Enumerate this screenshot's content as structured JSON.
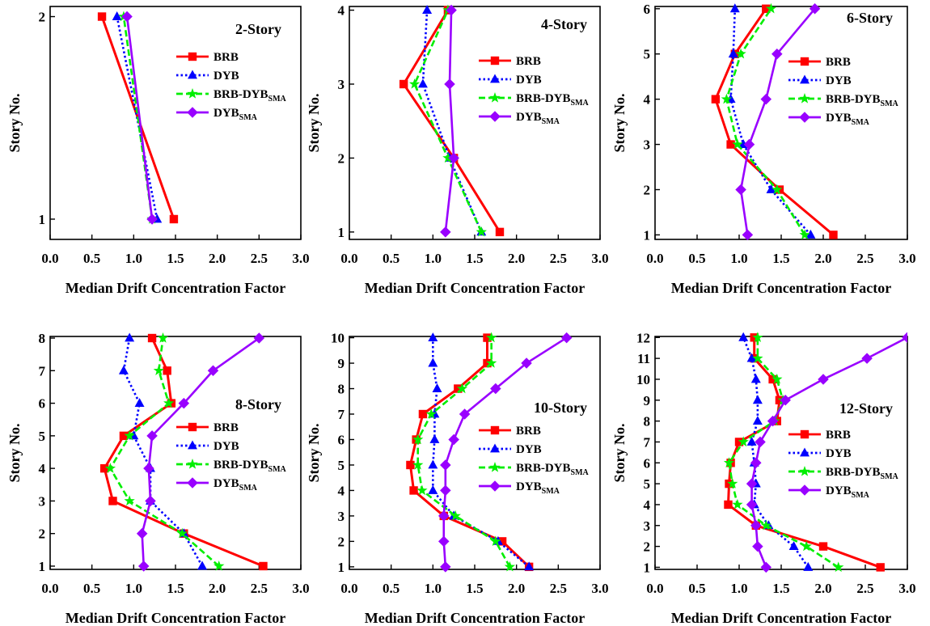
{
  "colors": {
    "BRB": "#ff0000",
    "DYB": "#0000ff",
    "BRB-DYB_SMA": "#00ee00",
    "DYB_SMA": "#9900ff"
  },
  "chart_data": [
    {
      "type": "line",
      "title": "2-Story",
      "xlabel": "Median Drift Concentration Factor",
      "ylabel": "Story No.",
      "xlim": [
        0.0,
        3.0
      ],
      "xticks": [
        "0.0",
        "0.5",
        "1.0",
        "1.5",
        "2.0",
        "2.5",
        "3.0"
      ],
      "ylim": [
        0.9,
        2.05
      ],
      "yticks": [
        "1",
        "2"
      ],
      "legend_position": "right",
      "series": [
        {
          "name": "BRB",
          "marker": "square",
          "line": "solid",
          "x": [
            1.48,
            0.62
          ],
          "y": [
            1,
            2
          ]
        },
        {
          "name": "DYB",
          "marker": "triangle",
          "line": "dotted",
          "x": [
            1.28,
            0.8
          ],
          "y": [
            1,
            2
          ]
        },
        {
          "name": "BRB-DYB",
          "name_sub": "SMA",
          "marker": "star",
          "line": "dashed",
          "x": [
            1.22,
            0.88
          ],
          "y": [
            1,
            2
          ]
        },
        {
          "name": "DYB",
          "name_sub": "SMA",
          "marker": "diamond",
          "line": "solid",
          "x": [
            1.22,
            0.92
          ],
          "y": [
            1,
            2
          ]
        }
      ]
    },
    {
      "type": "line",
      "title": "4-Story",
      "xlabel": "Median Drift Concentration Factor",
      "ylabel": "Story No.",
      "xlim": [
        0.0,
        3.0
      ],
      "xticks": [
        "0.0",
        "0.5",
        "1.0",
        "1.5",
        "2.0",
        "2.5",
        "3.0"
      ],
      "ylim": [
        0.9,
        4.05
      ],
      "yticks": [
        "1",
        "2",
        "3",
        "4"
      ],
      "legend_position": "right",
      "series": [
        {
          "name": "BRB",
          "marker": "square",
          "line": "solid",
          "x": [
            1.8,
            1.25,
            0.65,
            1.18
          ],
          "y": [
            1,
            2,
            3,
            4
          ]
        },
        {
          "name": "DYB",
          "marker": "triangle",
          "line": "dotted",
          "x": [
            1.58,
            1.2,
            0.88,
            0.93
          ],
          "y": [
            1,
            2,
            3,
            4
          ]
        },
        {
          "name": "BRB-DYB",
          "name_sub": "SMA",
          "marker": "star",
          "line": "dashed",
          "x": [
            1.58,
            1.18,
            0.78,
            1.18
          ],
          "y": [
            1,
            2,
            3,
            4
          ]
        },
        {
          "name": "DYB",
          "name_sub": "SMA",
          "marker": "diamond",
          "line": "solid",
          "x": [
            1.15,
            1.25,
            1.2,
            1.22
          ],
          "y": [
            1,
            2,
            3,
            4
          ]
        }
      ]
    },
    {
      "type": "line",
      "title": "6-Story",
      "xlabel": "Median Drift Concentration Factor",
      "ylabel": "Story No.",
      "xlim": [
        0.0,
        3.0
      ],
      "xticks": [
        "0.0",
        "0.5",
        "1.0",
        "1.5",
        "2.0",
        "2.5",
        "3.0"
      ],
      "ylim": [
        0.9,
        6.05
      ],
      "yticks": [
        "1",
        "2",
        "3",
        "4",
        "5",
        "6"
      ],
      "legend_position": "right",
      "series": [
        {
          "name": "BRB",
          "marker": "square",
          "line": "solid",
          "x": [
            2.12,
            1.48,
            0.9,
            0.72,
            0.95,
            1.32
          ],
          "y": [
            1,
            2,
            3,
            4,
            5,
            6
          ]
        },
        {
          "name": "DYB",
          "marker": "triangle",
          "line": "dotted",
          "x": [
            1.85,
            1.38,
            1.05,
            0.9,
            0.93,
            0.95
          ],
          "y": [
            1,
            2,
            3,
            4,
            5,
            6
          ]
        },
        {
          "name": "BRB-DYB",
          "name_sub": "SMA",
          "marker": "star",
          "line": "dashed",
          "x": [
            1.78,
            1.45,
            0.98,
            0.85,
            1.02,
            1.38
          ],
          "y": [
            1,
            2,
            3,
            4,
            5,
            6
          ]
        },
        {
          "name": "DYB",
          "name_sub": "SMA",
          "marker": "diamond",
          "line": "solid",
          "x": [
            1.1,
            1.02,
            1.12,
            1.32,
            1.45,
            1.9
          ],
          "y": [
            1,
            2,
            3,
            4,
            5,
            6
          ]
        }
      ]
    },
    {
      "type": "line",
      "title": "8-Story",
      "xlabel": "Median Drift Concentration Factor",
      "ylabel": "Story No.",
      "xlim": [
        0.0,
        3.0
      ],
      "xticks": [
        "0.0",
        "0.5",
        "1.0",
        "1.5",
        "2.0",
        "2.5",
        "3.0"
      ],
      "ylim": [
        0.9,
        8.05
      ],
      "yticks": [
        "1",
        "2",
        "3",
        "4",
        "5",
        "6",
        "7",
        "8"
      ],
      "legend_position": "right",
      "series": [
        {
          "name": "BRB",
          "marker": "square",
          "line": "solid",
          "x": [
            2.55,
            1.6,
            0.75,
            0.65,
            0.88,
            1.45,
            1.4,
            1.22
          ],
          "y": [
            1,
            2,
            3,
            4,
            5,
            6,
            7,
            8
          ]
        },
        {
          "name": "DYB",
          "marker": "triangle",
          "line": "dotted",
          "x": [
            1.82,
            1.6,
            1.2,
            1.2,
            1.0,
            1.07,
            0.88,
            0.95
          ],
          "y": [
            1,
            2,
            3,
            4,
            5,
            6,
            7,
            8
          ]
        },
        {
          "name": "BRB-DYB",
          "name_sub": "SMA",
          "marker": "star",
          "line": "dashed",
          "x": [
            2.02,
            1.58,
            0.95,
            0.72,
            0.95,
            1.42,
            1.3,
            1.35
          ],
          "y": [
            1,
            2,
            3,
            4,
            5,
            6,
            7,
            8
          ]
        },
        {
          "name": "DYB",
          "name_sub": "SMA",
          "marker": "diamond",
          "line": "solid",
          "x": [
            1.12,
            1.1,
            1.2,
            1.18,
            1.22,
            1.6,
            1.95,
            2.5
          ],
          "y": [
            1,
            2,
            3,
            4,
            5,
            6,
            7,
            8
          ]
        }
      ]
    },
    {
      "type": "line",
      "title": "10-Story",
      "xlabel": "Median Drift Concentration Factor",
      "ylabel": "Story No.",
      "xlim": [
        0.0,
        3.0
      ],
      "xticks": [
        "0.0",
        "0.5",
        "1.0",
        "1.5",
        "2.0",
        "2.5",
        "3.0"
      ],
      "ylim": [
        0.9,
        10.05
      ],
      "yticks": [
        "1",
        "2",
        "3",
        "4",
        "5",
        "6",
        "7",
        "8",
        "9",
        "10"
      ],
      "legend_position": "right",
      "series": [
        {
          "name": "BRB",
          "marker": "square",
          "line": "solid",
          "x": [
            2.15,
            1.83,
            1.13,
            0.77,
            0.73,
            0.8,
            0.88,
            1.3,
            1.65,
            1.65
          ],
          "y": [
            1,
            2,
            3,
            4,
            5,
            6,
            7,
            8,
            9,
            10
          ]
        },
        {
          "name": "DYB",
          "marker": "triangle",
          "line": "dotted",
          "x": [
            2.15,
            1.78,
            1.25,
            1.0,
            1.0,
            1.02,
            1.02,
            1.05,
            1.0,
            1.0
          ],
          "y": [
            1,
            2,
            3,
            4,
            5,
            6,
            7,
            8,
            9,
            10
          ]
        },
        {
          "name": "BRB-DYB",
          "name_sub": "SMA",
          "marker": "star",
          "line": "dashed",
          "x": [
            1.92,
            1.75,
            1.27,
            0.87,
            0.82,
            0.82,
            0.98,
            1.35,
            1.7,
            1.7
          ],
          "y": [
            1,
            2,
            3,
            4,
            5,
            6,
            7,
            8,
            9,
            10
          ]
        },
        {
          "name": "DYB",
          "name_sub": "SMA",
          "marker": "diamond",
          "line": "solid",
          "x": [
            1.15,
            1.13,
            1.13,
            1.15,
            1.15,
            1.25,
            1.38,
            1.75,
            2.12,
            2.6
          ],
          "y": [
            1,
            2,
            3,
            4,
            5,
            6,
            7,
            8,
            9,
            10
          ]
        }
      ]
    },
    {
      "type": "line",
      "title": "12-Story",
      "xlabel": "Median Drift Concentration Factor",
      "ylabel": "Story No.",
      "xlim": [
        0.0,
        3.0
      ],
      "xticks": [
        "0.0",
        "0.5",
        "1.0",
        "1.5",
        "2.0",
        "2.5",
        "3.0"
      ],
      "ylim": [
        0.9,
        12.05
      ],
      "yticks": [
        "1",
        "2",
        "3",
        "4",
        "5",
        "6",
        "7",
        "8",
        "9",
        "10",
        "11",
        "12"
      ],
      "legend_position": "right",
      "series": [
        {
          "name": "BRB",
          "marker": "square",
          "line": "solid",
          "x": [
            2.68,
            2.0,
            1.2,
            0.87,
            0.88,
            0.9,
            1.0,
            1.45,
            1.48,
            1.4,
            1.18,
            1.18
          ],
          "y": [
            1,
            2,
            3,
            4,
            5,
            6,
            7,
            8,
            9,
            10,
            11,
            12
          ]
        },
        {
          "name": "DYB",
          "marker": "triangle",
          "line": "dotted",
          "x": [
            1.82,
            1.65,
            1.35,
            1.18,
            1.2,
            1.18,
            1.15,
            1.22,
            1.22,
            1.2,
            1.15,
            1.05
          ],
          "y": [
            1,
            2,
            3,
            4,
            5,
            6,
            7,
            8,
            9,
            10,
            11,
            12
          ]
        },
        {
          "name": "BRB-DYB",
          "name_sub": "SMA",
          "marker": "star",
          "line": "dashed",
          "x": [
            2.18,
            1.8,
            1.32,
            0.98,
            0.92,
            0.88,
            1.05,
            1.42,
            1.52,
            1.45,
            1.22,
            1.22
          ],
          "y": [
            1,
            2,
            3,
            4,
            5,
            6,
            7,
            8,
            9,
            10,
            11,
            12
          ]
        },
        {
          "name": "DYB",
          "name_sub": "SMA",
          "marker": "diamond",
          "line": "solid",
          "x": [
            1.32,
            1.22,
            1.2,
            1.15,
            1.15,
            1.2,
            1.25,
            1.4,
            1.55,
            2.0,
            2.52,
            3.0
          ],
          "y": [
            1,
            2,
            3,
            4,
            5,
            6,
            7,
            8,
            9,
            10,
            11,
            12
          ]
        }
      ]
    }
  ]
}
